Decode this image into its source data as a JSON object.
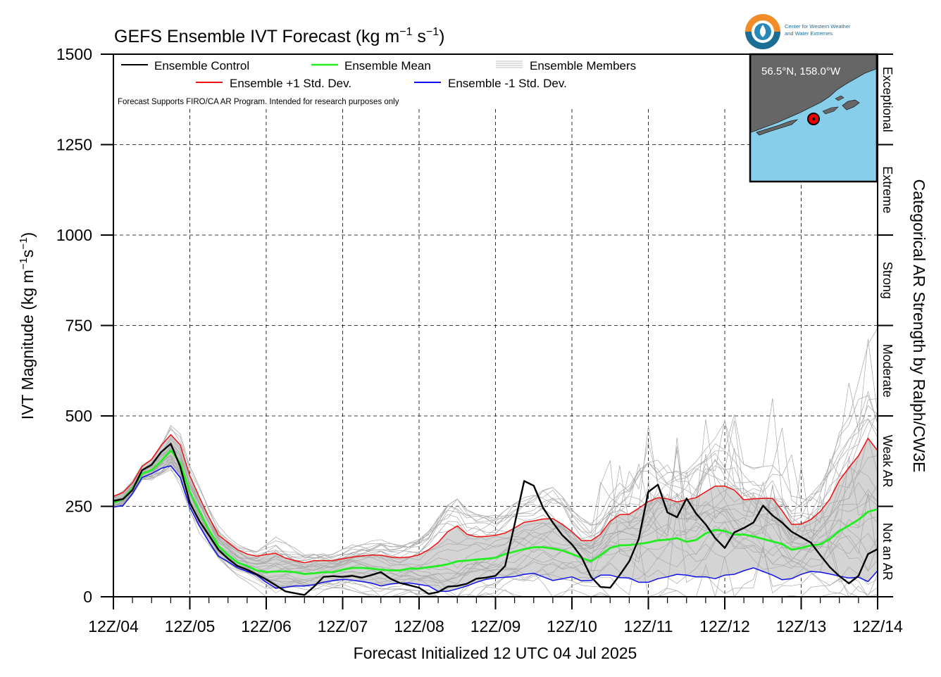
{
  "logo": {
    "text_line1": "Center for Western Weather",
    "text_line2": "and Water Extremes"
  },
  "chart_data": {
    "type": "line",
    "title": "GEFS Ensemble IVT Forecast (kg m$^{-1}$ s$^{-1}$)",
    "title_main": "GEFS Ensemble IVT Forecast (kg m",
    "title_exp1": "−1",
    "title_mid": " s",
    "title_exp2": "−1",
    "title_end": ")",
    "ylabel_main": "IVT Magnitude (kg m",
    "ylabel_exp1": "−1",
    "ylabel_mid": "s",
    "ylabel_exp2": "−1",
    "ylabel_end": ")",
    "xlabel": "Forecast Initialized 12 UTC 04 Jul 2025",
    "right_label": "Categorical AR Strength by Ralph/CW3E",
    "note": "Forecast Supports FIRO/CA AR Program. Intended for research purposes only",
    "ylim": [
      0,
      1500
    ],
    "xlim": [
      0,
      240
    ],
    "yticks": [
      0,
      250,
      500,
      750,
      1000,
      1250,
      1500
    ],
    "xticks": [
      "12Z/04",
      "12Z/05",
      "12Z/06",
      "12Z/07",
      "12Z/08",
      "12Z/09",
      "12Z/10",
      "12Z/11",
      "12Z/12",
      "12Z/13",
      "12Z/14"
    ],
    "x_units": "forecast hours",
    "grid": true,
    "legend": [
      {
        "label": "Ensemble Control",
        "color": "#000000"
      },
      {
        "label": "Ensemble Mean",
        "color": "#22ee22"
      },
      {
        "label": "Ensemble Members",
        "color": "#b0b0b0"
      },
      {
        "label": "Ensemble +1 Std. Dev.",
        "color": "#ee1111"
      },
      {
        "label": "Ensemble -1 Std. Dev.",
        "color": "#1111ee"
      }
    ],
    "categories_right": [
      {
        "label": "Not an AR",
        "range": [
          0,
          250
        ]
      },
      {
        "label": "Weak AR",
        "range": [
          250,
          500
        ]
      },
      {
        "label": "Moderate",
        "range": [
          500,
          750
        ]
      },
      {
        "label": "Strong",
        "range": [
          750,
          1000
        ]
      },
      {
        "label": "Extreme",
        "range": [
          1000,
          1250
        ]
      },
      {
        "label": "Exceptional",
        "range": [
          1250,
          1500
        ]
      }
    ],
    "inset_map": {
      "label": "56.5°N, 158.0°W",
      "water_color": "#87ceeb",
      "land_color": "#666666",
      "marker_color": "#ee0000"
    },
    "x": [
      0,
      3,
      6,
      9,
      12,
      15,
      18,
      21,
      24,
      27,
      30,
      33,
      36,
      39,
      42,
      45,
      48,
      51,
      54,
      57,
      60,
      63,
      66,
      69,
      72,
      75,
      78,
      81,
      84,
      87,
      90,
      93,
      96,
      99,
      102,
      105,
      108,
      111,
      114,
      117,
      120,
      123,
      126,
      129,
      132,
      135,
      138,
      141,
      144,
      147,
      150,
      153,
      156,
      159,
      162,
      165,
      168,
      171,
      174,
      177,
      180,
      183,
      186,
      189,
      192,
      195,
      198,
      201,
      204,
      207,
      210,
      213,
      216,
      219,
      222,
      225,
      228,
      231,
      234,
      237,
      240
    ],
    "series": [
      {
        "name": "Ensemble Control",
        "color": "#000000",
        "values": [
          265,
          270,
          295,
          350,
          365,
          400,
          423,
          360,
          260,
          210,
          170,
          130,
          105,
          85,
          75,
          62,
          48,
          32,
          15,
          10,
          5,
          28,
          55,
          57,
          55,
          58,
          53,
          60,
          68,
          50,
          38,
          32,
          25,
          8,
          13,
          28,
          30,
          36,
          50,
          53,
          58,
          85,
          200,
          320,
          307,
          245,
          205,
          170,
          145,
          110,
          55,
          27,
          25,
          60,
          98,
          160,
          290,
          310,
          233,
          220,
          272,
          230,
          200,
          162,
          135,
          178,
          190,
          205,
          252,
          225,
          205,
          180,
          165,
          150,
          115,
          82,
          57,
          37,
          58,
          118,
          132
        ]
      },
      {
        "name": "Ensemble Mean",
        "color": "#22ee22",
        "values": [
          260,
          270,
          300,
          340,
          350,
          375,
          405,
          370,
          290,
          235,
          185,
          140,
          115,
          95,
          85,
          73,
          68,
          70,
          70,
          68,
          63,
          65,
          68,
          68,
          75,
          80,
          80,
          78,
          75,
          73,
          73,
          78,
          78,
          82,
          85,
          90,
          98,
          100,
          103,
          105,
          108,
          118,
          125,
          132,
          137,
          137,
          133,
          128,
          118,
          108,
          98,
          115,
          135,
          142,
          143,
          146,
          150,
          156,
          158,
          162,
          152,
          157,
          175,
          185,
          182,
          172,
          172,
          167,
          160,
          153,
          146,
          130,
          135,
          142,
          145,
          160,
          182,
          197,
          213,
          235,
          242
        ]
      },
      {
        "name": "Ensemble +1 Std. Dev.",
        "color": "#ee1111",
        "values": [
          278,
          288,
          315,
          360,
          380,
          418,
          448,
          420,
          335,
          275,
          220,
          170,
          150,
          130,
          118,
          112,
          117,
          120,
          107,
          100,
          94,
          100,
          100,
          100,
          105,
          110,
          113,
          115,
          115,
          110,
          108,
          110,
          116,
          130,
          150,
          180,
          196,
          173,
          166,
          167,
          170,
          176,
          190,
          206,
          210,
          215,
          216,
          200,
          180,
          155,
          155,
          173,
          209,
          227,
          228,
          245,
          263,
          274,
          271,
          262,
          268,
          274,
          290,
          306,
          306,
          295,
          268,
          271,
          272,
          272,
          238,
          200,
          201,
          213,
          236,
          270,
          322,
          357,
          390,
          438,
          404
        ]
      },
      {
        "name": "Ensemble -1 Std. Dev.",
        "color": "#1111ee",
        "values": [
          248,
          252,
          285,
          330,
          340,
          355,
          362,
          330,
          248,
          196,
          152,
          112,
          97,
          80,
          70,
          60,
          40,
          24,
          26,
          30,
          30,
          33,
          40,
          45,
          48,
          46,
          42,
          38,
          30,
          35,
          38,
          38,
          34,
          30,
          15,
          15,
          22,
          30,
          40,
          48,
          52,
          54,
          56,
          62,
          65,
          55,
          45,
          50,
          55,
          44,
          45,
          60,
          60,
          53,
          52,
          40,
          40,
          50,
          55,
          62,
          60,
          55,
          55,
          50,
          60,
          62,
          72,
          80,
          70,
          60,
          47,
          50,
          62,
          70,
          68,
          63,
          57,
          52,
          54,
          42,
          72
        ]
      }
    ],
    "members_note": "30 ensemble member traces drawn procedurally around the mean within the spread envelope"
  }
}
